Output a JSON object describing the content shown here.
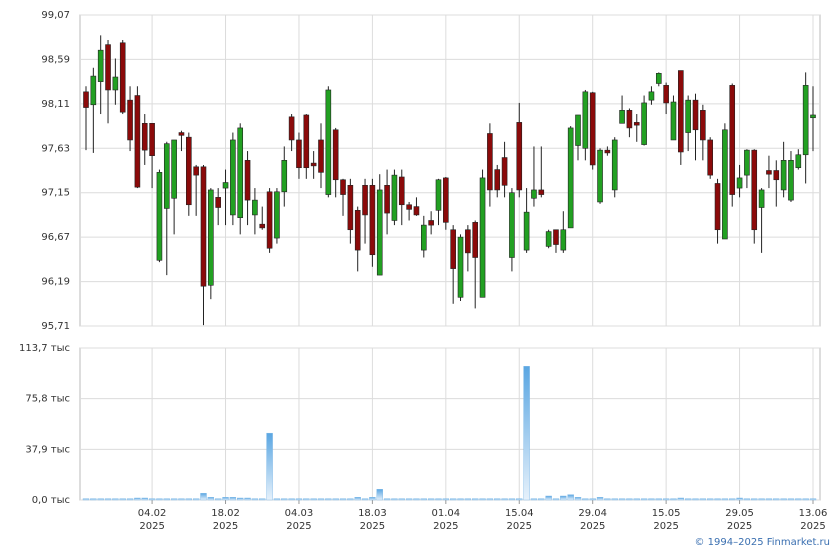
{
  "chart_data": {
    "type": "candlestick",
    "categories": [
      null,
      null,
      null,
      null,
      null,
      null,
      null,
      null,
      null,
      "04.02\n2025",
      null,
      null,
      null,
      null,
      null,
      null,
      null,
      null,
      null,
      "18.02\n2025",
      null,
      null,
      null,
      null,
      null,
      null,
      null,
      null,
      null,
      "04.03\n2025",
      null,
      null,
      null,
      null,
      null,
      null,
      null,
      null,
      null,
      "18.03\n2025",
      null,
      null,
      null,
      null,
      null,
      null,
      null,
      null,
      null,
      "01.04\n2025",
      null,
      null,
      null,
      null,
      null,
      null,
      null,
      null,
      null,
      "15.04\n2025",
      null,
      null,
      null,
      null,
      null,
      null,
      null,
      null,
      null,
      "29.04\n2025",
      null,
      null,
      null,
      null,
      null,
      null,
      null,
      null,
      null,
      "15.05\n2025",
      null,
      null,
      null,
      null,
      null,
      null,
      null,
      null,
      null,
      "29.05\n2025",
      null,
      null,
      null,
      null,
      null,
      null,
      null,
      null,
      null,
      "13.06\n2025"
    ],
    "open": [
      98.24,
      98.1,
      98.35,
      98.75,
      98.26,
      98.77,
      98.15,
      98.2,
      97.9,
      97.9,
      96.42,
      96.98,
      97.09,
      97.8,
      97.75,
      97.43,
      97.43,
      96.15,
      97.1,
      97.2,
      96.91,
      96.88,
      97.5,
      96.91,
      96.81,
      97.16,
      96.66,
      97.16,
      97.97,
      97.72,
      97.99,
      97.47,
      97.72,
      97.13,
      97.83,
      97.29,
      97.23,
      96.96,
      97.23,
      97.23,
      96.26,
      97.23,
      96.85,
      97.32,
      97.02,
      97.0,
      96.53,
      96.85,
      96.96,
      97.31,
      96.75,
      96.02,
      96.75,
      96.83,
      96.02,
      97.79,
      97.4,
      97.53,
      96.45,
      97.91,
      96.53,
      97.09,
      97.18,
      96.57,
      96.75,
      96.53,
      96.77,
      97.66,
      97.63,
      98.23,
      97.05,
      97.61,
      97.18,
      97.9,
      98.04,
      97.91,
      97.67,
      98.15,
      98.33,
      98.31,
      97.72,
      98.47,
      97.8,
      98.15,
      98.04,
      97.72,
      97.25,
      96.65,
      98.31,
      97.2,
      97.34,
      97.61,
      96.99,
      97.39,
      97.39,
      97.18,
      97.07,
      97.42,
      97.56,
      97.96
    ],
    "high": [
      98.3,
      98.5,
      98.85,
      98.8,
      98.6,
      98.8,
      98.3,
      98.3,
      98.0,
      97.9,
      97.4,
      97.7,
      97.72,
      97.82,
      97.8,
      97.45,
      97.45,
      97.2,
      97.2,
      97.4,
      97.8,
      97.9,
      97.6,
      97.2,
      97.0,
      97.2,
      97.2,
      97.65,
      98.0,
      97.8,
      98.0,
      97.6,
      97.9,
      98.3,
      97.85,
      97.3,
      97.3,
      97.0,
      97.3,
      97.3,
      97.35,
      97.4,
      97.4,
      97.4,
      97.05,
      97.1,
      96.9,
      96.95,
      97.3,
      97.32,
      96.8,
      96.7,
      96.8,
      96.85,
      97.4,
      97.9,
      97.45,
      97.7,
      97.2,
      98.12,
      97.2,
      97.65,
      97.65,
      96.75,
      96.75,
      96.95,
      97.87,
      97.99,
      98.26,
      98.24,
      97.63,
      97.65,
      97.75,
      98.2,
      98.06,
      98.0,
      98.2,
      98.3,
      98.45,
      98.34,
      98.2,
      98.47,
      98.2,
      98.22,
      98.1,
      97.75,
      97.3,
      97.9,
      98.33,
      97.45,
      97.62,
      97.62,
      97.2,
      97.55,
      97.5,
      97.7,
      97.6,
      97.62,
      98.45,
      98.3
    ],
    "low": [
      97.61,
      97.58,
      98.0,
      97.9,
      98.1,
      98.0,
      97.6,
      97.2,
      97.45,
      97.2,
      96.4,
      96.26,
      96.7,
      97.6,
      96.9,
      96.9,
      95.72,
      96.0,
      96.8,
      96.8,
      96.8,
      96.7,
      96.8,
      96.7,
      96.75,
      96.5,
      96.6,
      97.0,
      97.6,
      97.3,
      97.3,
      97.3,
      97.2,
      97.1,
      97.1,
      96.9,
      96.6,
      96.3,
      96.6,
      96.35,
      96.26,
      96.7,
      96.8,
      96.8,
      96.85,
      96.9,
      96.45,
      96.7,
      96.8,
      96.75,
      95.95,
      95.98,
      96.3,
      95.9,
      96.02,
      97.0,
      97.1,
      97.1,
      96.3,
      97.1,
      96.5,
      97.0,
      97.1,
      96.55,
      96.5,
      96.5,
      96.77,
      97.5,
      97.5,
      97.4,
      97.03,
      97.55,
      97.1,
      97.9,
      97.75,
      97.7,
      97.66,
      98.1,
      98.3,
      98.0,
      97.72,
      97.45,
      97.6,
      97.5,
      97.5,
      97.3,
      96.6,
      96.65,
      97.0,
      97.1,
      97.2,
      96.6,
      96.5,
      97.2,
      97.0,
      97.1,
      97.05,
      97.4,
      97.25,
      97.6
    ],
    "close": [
      98.07,
      98.41,
      98.69,
      98.26,
      98.4,
      98.02,
      97.72,
      97.21,
      97.61,
      97.55,
      97.37,
      97.68,
      97.72,
      97.77,
      97.02,
      97.34,
      96.14,
      97.18,
      96.99,
      97.26,
      97.72,
      97.85,
      97.07,
      97.07,
      96.77,
      96.55,
      97.16,
      97.5,
      97.72,
      97.42,
      97.42,
      97.44,
      97.37,
      98.26,
      97.29,
      97.13,
      96.75,
      96.53,
      96.91,
      96.48,
      97.18,
      96.93,
      97.34,
      97.02,
      96.97,
      96.91,
      96.8,
      96.8,
      97.29,
      96.83,
      96.33,
      96.67,
      96.5,
      96.45,
      97.31,
      97.18,
      97.18,
      97.23,
      97.15,
      97.18,
      96.94,
      97.18,
      97.13,
      96.73,
      96.59,
      96.75,
      97.85,
      97.99,
      98.24,
      97.45,
      97.61,
      97.58,
      97.72,
      98.04,
      97.85,
      97.88,
      98.12,
      98.24,
      98.44,
      98.12,
      98.13,
      97.59,
      98.15,
      97.83,
      97.72,
      97.34,
      96.75,
      97.83,
      97.13,
      97.31,
      97.61,
      96.75,
      97.18,
      97.35,
      97.29,
      97.5,
      97.5,
      97.56,
      98.31,
      97.99
    ],
    "up_color": "#22a022",
    "down_color": "#8b0a0a",
    "ylim": [
      95.71,
      99.07
    ],
    "yticks": [
      {
        "value": 95.71,
        "label": "95,71"
      },
      {
        "value": 96.19,
        "label": "96,19"
      },
      {
        "value": 96.67,
        "label": "96,67"
      },
      {
        "value": 97.15,
        "label": "97,15"
      },
      {
        "value": 97.63,
        "label": "97,63"
      },
      {
        "value": 98.11,
        "label": "98,11"
      },
      {
        "value": 98.59,
        "label": "98,59"
      },
      {
        "value": 99.07,
        "label": "99,07"
      }
    ],
    "grid": true,
    "volume": {
      "color": "#7ab6e6",
      "values": [
        1,
        1,
        1,
        1,
        1,
        1,
        1,
        1.5,
        1.5,
        1,
        1,
        1,
        1,
        1,
        1,
        1,
        5,
        2,
        1,
        2,
        2,
        1.5,
        1.5,
        1,
        1,
        50,
        1,
        1,
        1,
        1,
        1,
        1,
        1,
        1,
        1,
        1,
        1,
        2,
        1,
        2,
        8,
        1,
        1,
        1,
        1,
        1,
        1,
        1,
        1,
        1,
        1,
        1,
        1,
        1,
        1,
        1,
        1,
        1,
        1,
        1,
        100,
        1,
        1,
        3,
        1,
        3,
        4,
        2,
        1,
        1,
        2,
        1,
        1,
        1,
        1,
        1,
        1,
        1,
        1,
        1,
        1,
        1.5,
        1,
        1,
        1,
        1,
        1,
        1,
        1,
        1.5,
        1,
        1,
        1,
        1,
        1,
        1,
        1,
        1,
        1,
        1
      ],
      "ylim": [
        0,
        113.7
      ],
      "yticks": [
        {
          "value": 0,
          "label": "0,0 тыс"
        },
        {
          "value": 37.9,
          "label": "37,9 тыс"
        },
        {
          "value": 75.8,
          "label": "75,8 тыс"
        },
        {
          "value": 113.7,
          "label": "113,7 тыс"
        }
      ]
    },
    "copyright": "© 1994–2025 Finmarket.ru"
  }
}
